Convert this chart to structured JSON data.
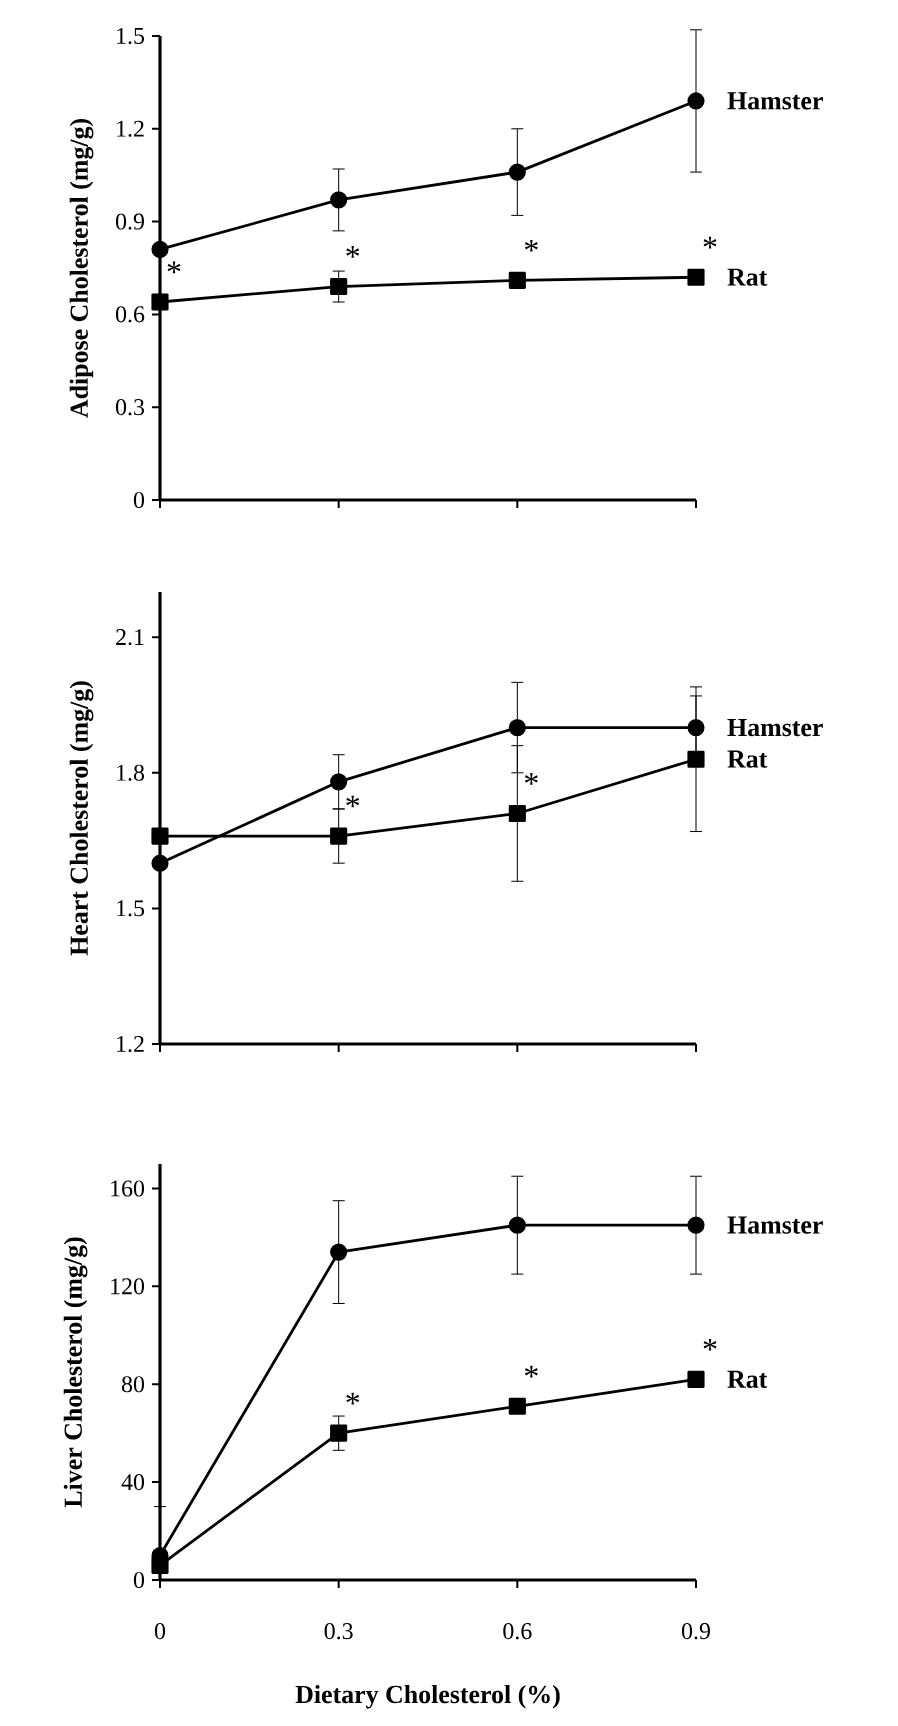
{
  "chart_data": [
    {
      "type": "line",
      "ylabel": "Adipose Cholesterol (mg/g)",
      "x": [
        0,
        0.3,
        0.6,
        0.9
      ],
      "xlim": [
        0,
        0.9
      ],
      "xticks": [
        0,
        0.3,
        0.6,
        0.9
      ],
      "ylim": [
        0,
        1.5
      ],
      "yticks": [
        0,
        0.3,
        0.6,
        0.9,
        1.2,
        1.5
      ],
      "tick_labels": "y",
      "grid": false,
      "legend": false,
      "series": [
        {
          "name": "Hamster",
          "color": "#000000",
          "marker": "circle",
          "values": [
            0.81,
            0.97,
            1.06,
            1.29
          ],
          "errors": [
            null,
            0.1,
            0.14,
            0.23
          ]
        },
        {
          "name": "Rat",
          "color": "#000000",
          "marker": "square",
          "values": [
            0.64,
            0.69,
            0.71,
            0.72
          ],
          "errors": [
            null,
            0.05,
            null,
            null
          ]
        }
      ],
      "annotations": [
        {
          "text": "*",
          "x": 0,
          "y": 0.64
        },
        {
          "text": "*",
          "x": 0.3,
          "y": 0.69
        },
        {
          "text": "*",
          "x": 0.6,
          "y": 0.71
        },
        {
          "text": "*",
          "x": 0.9,
          "y": 0.72
        }
      ]
    },
    {
      "type": "line",
      "ylabel": "Heart Cholesterol (mg/g)",
      "x": [
        0,
        0.3,
        0.6,
        0.9
      ],
      "xlim": [
        0,
        0.9
      ],
      "xticks": [
        0,
        0.3,
        0.6,
        0.9
      ],
      "ylim": [
        1.2,
        2.2
      ],
      "yticks": [
        1.2,
        1.5,
        1.8,
        2.1
      ],
      "tick_labels": "y",
      "grid": false,
      "legend": false,
      "series": [
        {
          "name": "Hamster",
          "color": "#000000",
          "marker": "circle",
          "values": [
            1.6,
            1.78,
            1.9,
            1.9
          ],
          "errors": [
            null,
            0.06,
            0.1,
            0.07
          ]
        },
        {
          "name": "Rat",
          "color": "#000000",
          "marker": "square",
          "values": [
            1.66,
            1.66,
            1.71,
            1.83
          ],
          "errors": [
            null,
            0.06,
            0.15,
            0.16
          ]
        }
      ],
      "annotations": [
        {
          "text": "*",
          "x": 0.3,
          "y": 1.66
        },
        {
          "text": "*",
          "x": 0.6,
          "y": 1.71
        }
      ]
    },
    {
      "type": "line",
      "ylabel": "Liver Cholesterol (mg/g)",
      "xlabel": "Dietary Cholesterol (%)",
      "x": [
        0,
        0.3,
        0.6,
        0.9
      ],
      "xlim": [
        0,
        0.9
      ],
      "xticks": [
        0,
        0.3,
        0.6,
        0.9
      ],
      "ylim": [
        0,
        170
      ],
      "yticks": [
        0,
        40,
        80,
        120,
        160
      ],
      "grid": false,
      "legend": false,
      "series": [
        {
          "name": "Hamster",
          "color": "#000000",
          "marker": "circle",
          "values": [
            10,
            134,
            145,
            145
          ],
          "errors": [
            [
              10,
              30
            ],
            21,
            20,
            20
          ]
        },
        {
          "name": "Rat",
          "color": "#000000",
          "marker": "square",
          "values": [
            6,
            60,
            71,
            82
          ],
          "errors": [
            null,
            7,
            null,
            null
          ]
        }
      ],
      "annotations": [
        {
          "text": "*",
          "x": 0.3,
          "y": 60
        },
        {
          "text": "*",
          "x": 0.6,
          "y": 71
        },
        {
          "text": "*",
          "x": 0.9,
          "y": 82
        }
      ]
    }
  ]
}
